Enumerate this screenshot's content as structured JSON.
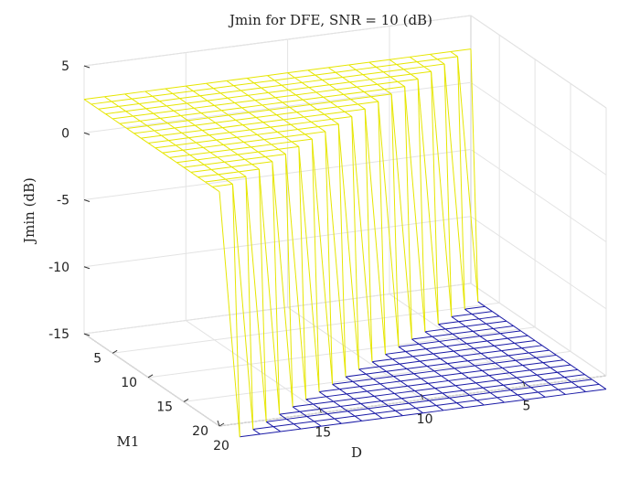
{
  "chart_data": {
    "type": "surface",
    "title": "Jmin for DFE, SNR = 10 (dB)",
    "xlabel": "D",
    "ylabel": "M1",
    "zlabel": "Jmin (dB)",
    "x_axis": {
      "ticks": [
        5,
        10,
        15,
        20
      ],
      "range": [
        1,
        20
      ],
      "direction": "reversed"
    },
    "y_axis": {
      "ticks": [
        5,
        10,
        15,
        20
      ],
      "range": [
        1,
        20
      ]
    },
    "z_axis": {
      "ticks": [
        -15,
        -10,
        -5,
        0,
        5
      ],
      "range": [
        -15,
        5
      ]
    },
    "grid": true,
    "surface": {
      "description_rule": "Jmin(D, M1) is high when D >= M1 and low when D < M1",
      "high_value_dB": 2.5,
      "low_value_dB": -16,
      "high_region_color": "#e6e600",
      "low_region_color": "#1a1aa6",
      "grid_size": 20
    }
  }
}
